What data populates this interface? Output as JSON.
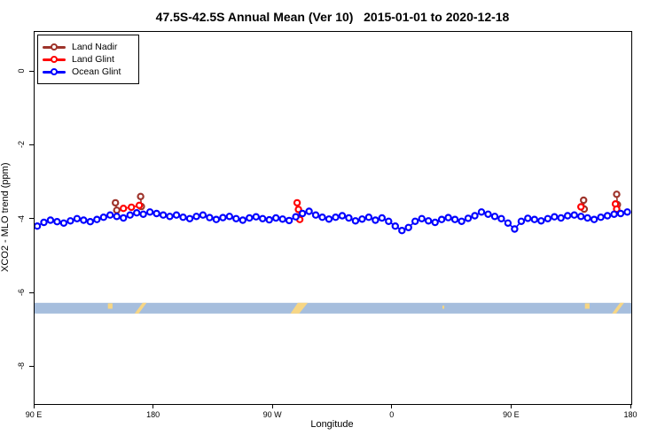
{
  "title": "47.5S-42.5S Annual Mean (Ver 10)   2015-01-01 to 2020-12-18",
  "chart_data": {
    "type": "line",
    "title": "47.5S-42.5S Annual Mean (Ver 10)   2015-01-01 to 2020-12-18",
    "xlabel": "Longitude",
    "ylabel": "XCO2 - MLO trend (ppm)",
    "xlim": [
      90,
      540
    ],
    "ylim": [
      -9.0,
      1.08
    ],
    "grid": false,
    "x_ticks": [
      {
        "lon": 90,
        "label": "90 E"
      },
      {
        "lon": 180,
        "label": "180"
      },
      {
        "lon": 270,
        "label": "90 W"
      },
      {
        "lon": 360,
        "label": "0"
      },
      {
        "lon": 450,
        "label": "90 E"
      },
      {
        "lon": 540,
        "label": "180"
      }
    ],
    "y_ticks": [
      {
        "v": 0,
        "label": "0"
      },
      {
        "v": -2,
        "label": "-2"
      },
      {
        "v": -4,
        "label": "-4"
      },
      {
        "v": -6,
        "label": "-6"
      },
      {
        "v": -8,
        "label": "-8"
      }
    ],
    "legend": {
      "position": "top-left",
      "items": [
        {
          "name": "Land Nadir",
          "color": "#9E342B"
        },
        {
          "name": "Land Glint",
          "color": "#FF0000"
        },
        {
          "name": "Ocean Glint",
          "color": "#0000FF"
        }
      ]
    },
    "series": [
      {
        "name": "Land Nadir",
        "color": "#9E342B",
        "points": [
          [
            151,
            -3.55
          ],
          [
            152,
            -3.75
          ],
          [
            170,
            -3.38
          ],
          [
            170.5,
            -3.65
          ],
          [
            504,
            -3.48
          ],
          [
            504.5,
            -3.72
          ],
          [
            529,
            -3.32
          ],
          [
            529.5,
            -3.6
          ]
        ]
      },
      {
        "name": "Land Glint",
        "color": "#FF0000",
        "points": [
          [
            157,
            -3.7
          ],
          [
            163,
            -3.67
          ],
          [
            169,
            -3.62
          ],
          [
            288,
            -3.55
          ],
          [
            289,
            -3.73
          ],
          [
            290,
            -4.0
          ],
          [
            502,
            -3.66
          ],
          [
            528,
            -3.58
          ],
          [
            529,
            -3.72
          ]
        ]
      },
      {
        "name": "Ocean Glint",
        "color": "#0000FF",
        "points": [
          [
            92,
            -4.18
          ],
          [
            97,
            -4.08
          ],
          [
            102,
            -4.02
          ],
          [
            107,
            -4.06
          ],
          [
            112,
            -4.1
          ],
          [
            117,
            -4.04
          ],
          [
            122,
            -3.98
          ],
          [
            127,
            -4.02
          ],
          [
            132,
            -4.06
          ],
          [
            137,
            -4.0
          ],
          [
            142,
            -3.94
          ],
          [
            147,
            -3.88
          ],
          [
            152,
            -3.92
          ],
          [
            157,
            -3.96
          ],
          [
            162,
            -3.88
          ],
          [
            167,
            -3.82
          ],
          [
            172,
            -3.86
          ],
          [
            177,
            -3.8
          ],
          [
            182,
            -3.84
          ],
          [
            187,
            -3.88
          ],
          [
            192,
            -3.92
          ],
          [
            197,
            -3.88
          ],
          [
            202,
            -3.94
          ],
          [
            207,
            -3.98
          ],
          [
            212,
            -3.92
          ],
          [
            217,
            -3.88
          ],
          [
            222,
            -3.95
          ],
          [
            227,
            -4.0
          ],
          [
            232,
            -3.95
          ],
          [
            237,
            -3.92
          ],
          [
            242,
            -3.98
          ],
          [
            247,
            -4.02
          ],
          [
            252,
            -3.96
          ],
          [
            257,
            -3.93
          ],
          [
            262,
            -3.98
          ],
          [
            267,
            -4.01
          ],
          [
            272,
            -3.96
          ],
          [
            277,
            -3.99
          ],
          [
            282,
            -4.03
          ],
          [
            287,
            -3.93
          ],
          [
            292,
            -3.84
          ],
          [
            297,
            -3.78
          ],
          [
            302,
            -3.88
          ],
          [
            307,
            -3.94
          ],
          [
            312,
            -3.99
          ],
          [
            317,
            -3.94
          ],
          [
            322,
            -3.9
          ],
          [
            327,
            -3.96
          ],
          [
            332,
            -4.04
          ],
          [
            337,
            -3.99
          ],
          [
            342,
            -3.94
          ],
          [
            347,
            -4.02
          ],
          [
            352,
            -3.96
          ],
          [
            357,
            -4.05
          ],
          [
            362,
            -4.18
          ],
          [
            367,
            -4.3
          ],
          [
            372,
            -4.22
          ],
          [
            377,
            -4.05
          ],
          [
            382,
            -3.98
          ],
          [
            387,
            -4.04
          ],
          [
            392,
            -4.08
          ],
          [
            397,
            -4.0
          ],
          [
            402,
            -3.95
          ],
          [
            407,
            -4.0
          ],
          [
            412,
            -4.05
          ],
          [
            417,
            -3.97
          ],
          [
            422,
            -3.9
          ],
          [
            427,
            -3.8
          ],
          [
            432,
            -3.86
          ],
          [
            437,
            -3.92
          ],
          [
            442,
            -3.98
          ],
          [
            447,
            -4.1
          ],
          [
            452,
            -4.26
          ],
          [
            457,
            -4.05
          ],
          [
            462,
            -3.97
          ],
          [
            467,
            -4.0
          ],
          [
            472,
            -4.04
          ],
          [
            477,
            -3.98
          ],
          [
            482,
            -3.93
          ],
          [
            487,
            -3.96
          ],
          [
            492,
            -3.9
          ],
          [
            497,
            -3.88
          ],
          [
            502,
            -3.92
          ],
          [
            507,
            -3.96
          ],
          [
            512,
            -4.0
          ],
          [
            517,
            -3.94
          ],
          [
            522,
            -3.9
          ],
          [
            527,
            -3.86
          ],
          [
            532,
            -3.84
          ],
          [
            537,
            -3.8
          ]
        ]
      }
    ],
    "map_band": {
      "description": "world map strip of the 47.5S-42.5S latitude band",
      "v_top": -6.26,
      "v_bottom": -6.55,
      "ocean_color": "#A6BEDD",
      "land_color": "#F7D684",
      "land_patches": [
        {
          "name": "tasmania",
          "poly": [
            [
              145.3,
              0.05
            ],
            [
              148.8,
              0.05
            ],
            [
              148.8,
              0.55
            ],
            [
              145.3,
              0.55
            ]
          ]
        },
        {
          "name": "new-zealand",
          "poly": [
            [
              165.5,
              1.0
            ],
            [
              168.5,
              1.0
            ],
            [
              174.5,
              0.0
            ],
            [
              171.5,
              0.0
            ]
          ]
        },
        {
          "name": "south-america",
          "poly": [
            [
              283.0,
              1.0
            ],
            [
              289.5,
              1.0
            ],
            [
              296.0,
              0.0
            ],
            [
              288.5,
              0.0
            ]
          ]
        },
        {
          "name": "prince-edward-islands",
          "poly": [
            [
              397.5,
              0.25
            ],
            [
              399.0,
              0.25
            ],
            [
              399.0,
              0.55
            ],
            [
              397.5,
              0.55
            ]
          ]
        },
        {
          "name": "tasmania-2",
          "poly": [
            [
              505.0,
              0.05
            ],
            [
              508.5,
              0.05
            ],
            [
              508.5,
              0.55
            ],
            [
              505.0,
              0.55
            ]
          ]
        },
        {
          "name": "new-zealand-2",
          "poly": [
            [
              525.5,
              1.0
            ],
            [
              528.5,
              1.0
            ],
            [
              534.5,
              0.0
            ],
            [
              531.5,
              0.0
            ]
          ]
        }
      ]
    }
  }
}
